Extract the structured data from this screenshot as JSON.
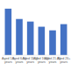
{
  "chart_data": {
    "type": "bar",
    "categories": [
      "Aged 1-5 years",
      "Aged 6-10 years",
      "Aged 11-15 years",
      "Aged 16-20 years",
      "Aged 21-25 years",
      "Aged 26+ years"
    ],
    "values": [
      90,
      70,
      65,
      55,
      48,
      60
    ],
    "color": "#4472c4",
    "ylim": [
      0,
      100
    ],
    "tick_labels": "x",
    "grid": false
  }
}
